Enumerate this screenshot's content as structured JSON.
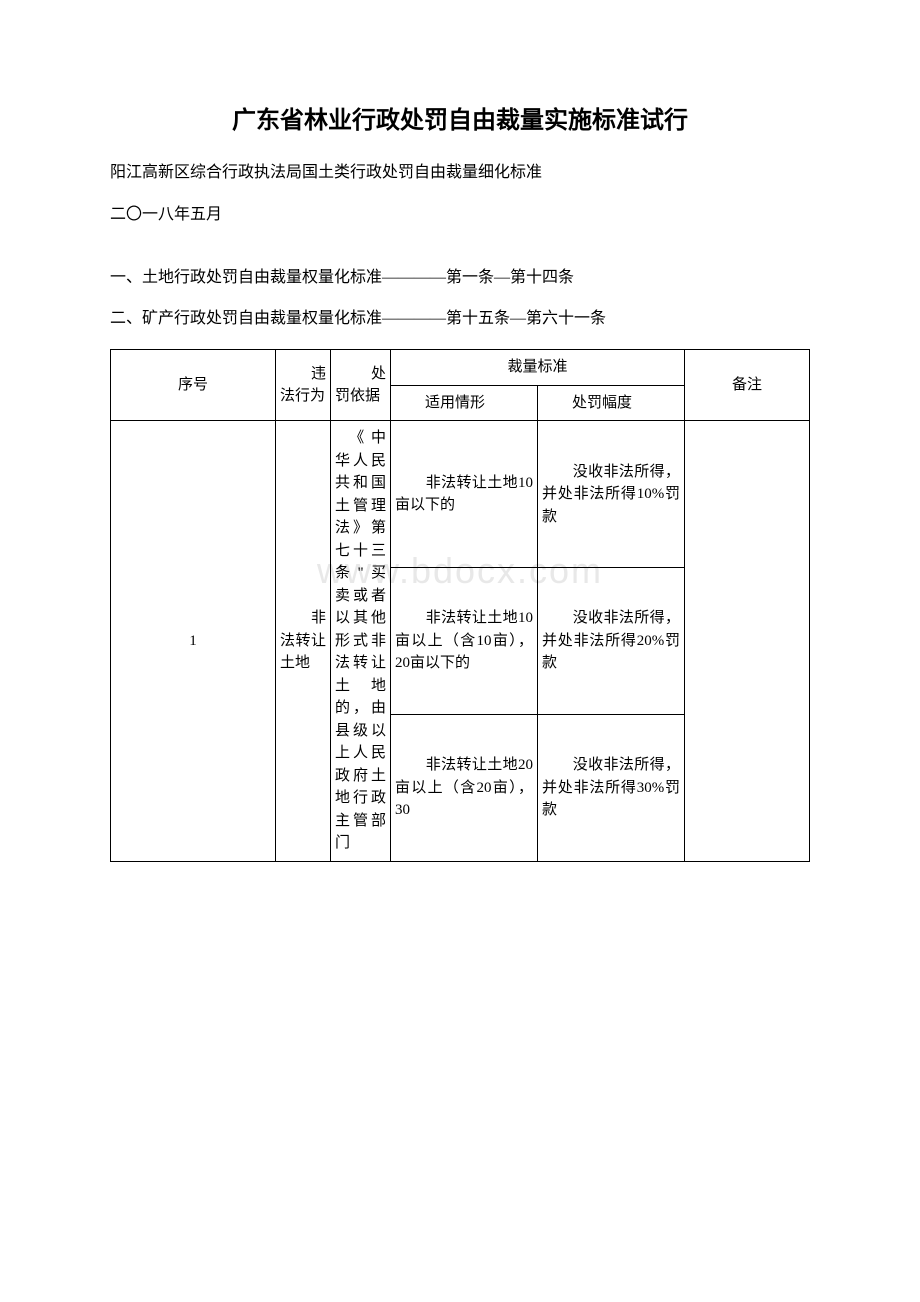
{
  "title": "广东省林业行政处罚自由裁量实施标准试行",
  "subtitle": "阳江高新区综合行政执法局国土类行政处罚自由裁量细化标准",
  "date": "二〇一八年五月",
  "section1": "一、土地行政处罚自由裁量权量化标准————第一条—第十四条",
  "section2": "二、矿产行政处罚自由裁量权量化标准————第十五条—第六十一条",
  "watermark": "www.bdocx.com",
  "headers": {
    "seq": "序号",
    "act": "　　违法行为",
    "basis": "　　处罚依据",
    "standard": "裁量标准",
    "condition": "　　适用情形",
    "penalty": "　　处罚幅度",
    "remark": "备注"
  },
  "rows": [
    {
      "seq": "1",
      "act": "　　非法转让土地",
      "basis": "　《中华人民共和国土管理法》第七十三条\"买卖或者以其他形式非法转让土地的，由县级以上人民政府土地行政主管部门",
      "items": [
        {
          "condition": "　　非法转让土地10亩以下的",
          "penalty": "　　没收非法所得，并处非法所得10%罚款"
        },
        {
          "condition": "　　非法转让土地10亩以上（含10亩），20亩以下的",
          "penalty": "　　没收非法所得，并处非法所得20%罚款"
        },
        {
          "condition": "　　非法转让土地20亩以上（含20亩），30",
          "penalty": "　　没收非法所得，并处非法所得30%罚款"
        }
      ],
      "remark": ""
    }
  ],
  "style": {
    "background_color": "#ffffff",
    "text_color": "#000000",
    "border_color": "#000000",
    "watermark_color": "#e8e8e8",
    "title_fontsize": 24,
    "body_fontsize": 16,
    "table_fontsize": 15
  }
}
